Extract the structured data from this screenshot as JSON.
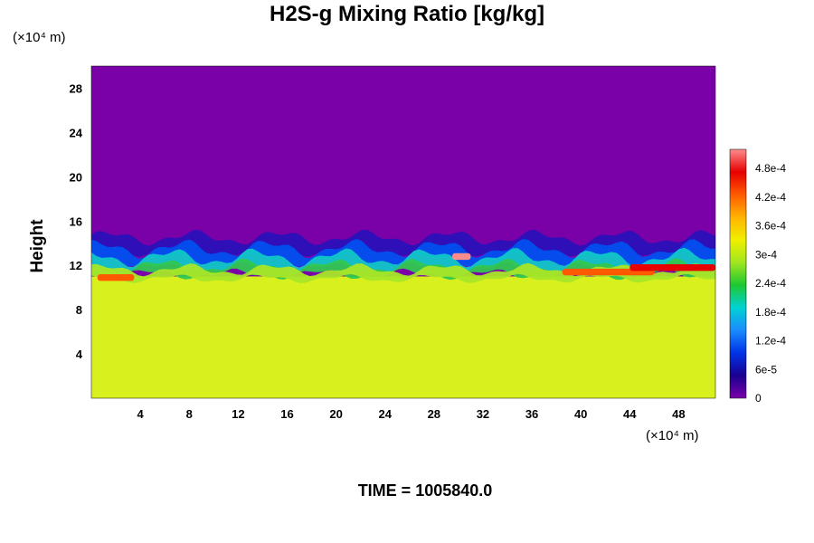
{
  "chart_data": {
    "type": "heatmap",
    "title": "H2S-g Mixing Ratio [kg/kg]",
    "ylabel": "Height",
    "x_unit": "(×10⁴ m)",
    "y_unit": "(×10⁴ m)",
    "xlim": [
      0,
      51
    ],
    "ylim": [
      0,
      30
    ],
    "xticks": [
      "4",
      "8",
      "12",
      "16",
      "20",
      "24",
      "28",
      "32",
      "36",
      "40",
      "44",
      "48"
    ],
    "yticks": [
      "4",
      "8",
      "12",
      "16",
      "20",
      "24",
      "28"
    ],
    "colorbar": {
      "ticks": [
        "0",
        "6e-5",
        "1.2e-4",
        "1.8e-4",
        "2.4e-4",
        "3e-4",
        "3.6e-4",
        "4.2e-4",
        "4.8e-4"
      ],
      "tick_values": [
        0,
        6e-05,
        0.00012,
        0.00018,
        0.00024,
        0.0003,
        0.00036,
        0.00042,
        0.00048
      ],
      "range": [
        0,
        0.00052
      ],
      "colors": [
        "#7a00a8",
        "#1a0090",
        "#0033e6",
        "#1a8cff",
        "#00d2d2",
        "#1ec832",
        "#a0e61e",
        "#f0f000",
        "#ffb400",
        "#ff5a00",
        "#e60000",
        "#ff8c8c"
      ]
    },
    "fields": {
      "upper_region_color": "#7a00a8",
      "lower_region_color": "#d8f01e",
      "interface_height": 14.5,
      "lower_layer_top": 11
    }
  },
  "footer": {
    "time_label": "TIME = 1005840.0"
  }
}
